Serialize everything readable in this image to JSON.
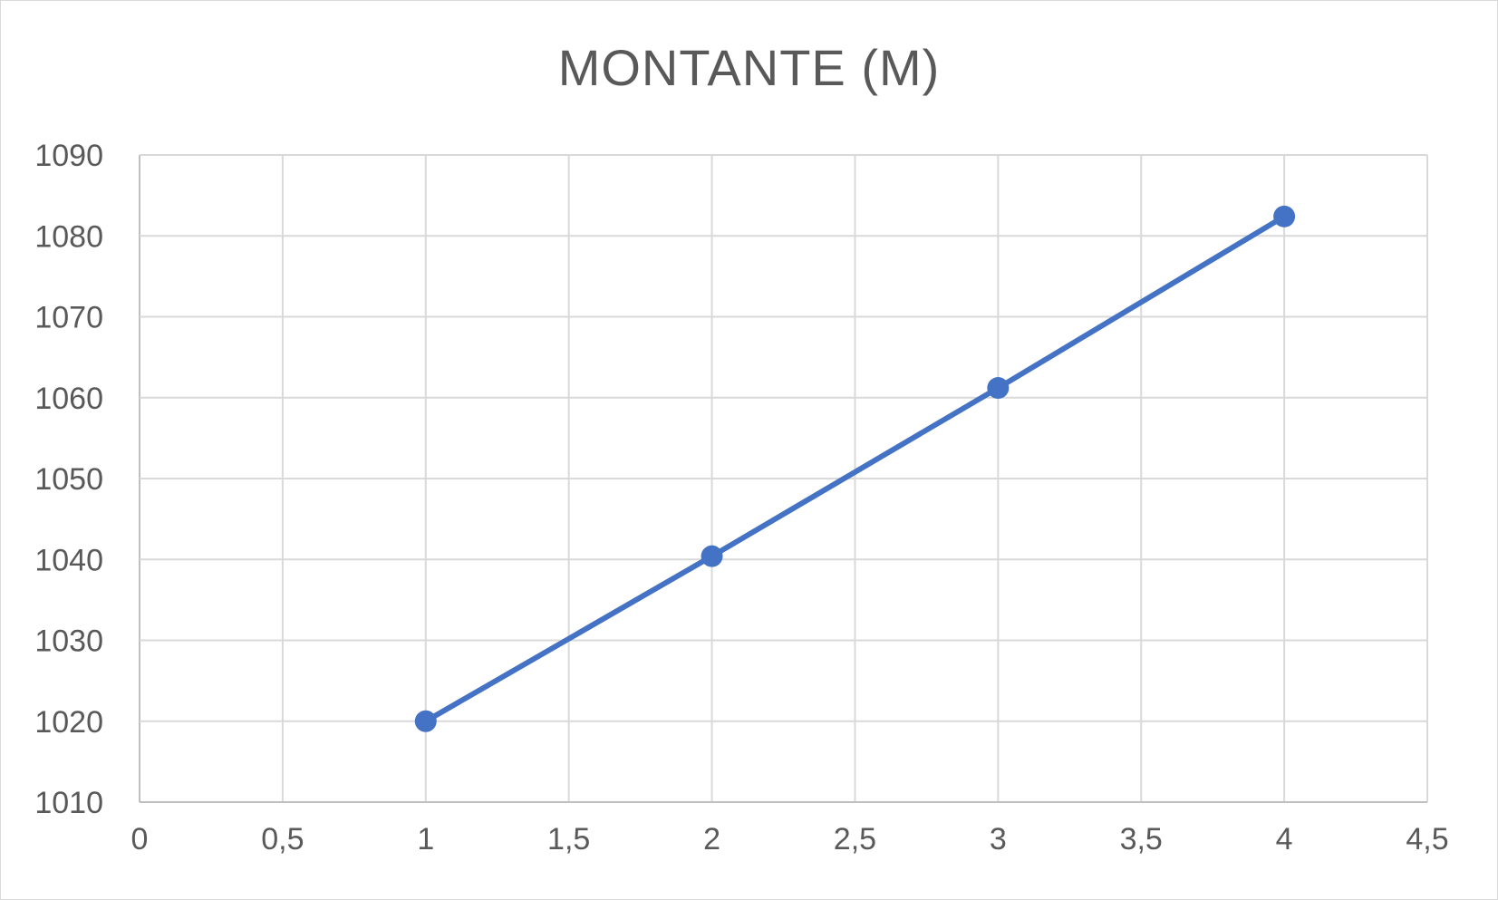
{
  "chart_data": {
    "type": "scatter",
    "title": "MONTANTE (M)",
    "xlabel": "",
    "ylabel": "",
    "xlim": [
      0,
      4.5
    ],
    "ylim": [
      1010,
      1090
    ],
    "x_ticks": [
      "0",
      "0,5",
      "1",
      "1,5",
      "2",
      "2,5",
      "3",
      "3,5",
      "4",
      "4,5"
    ],
    "y_ticks": [
      "1010",
      "1020",
      "1030",
      "1040",
      "1050",
      "1060",
      "1070",
      "1080",
      "1090"
    ],
    "grid": true,
    "legend": "none",
    "series": [
      {
        "color": "#4472C4",
        "marker": "circle",
        "line": "straight",
        "x": [
          1,
          2,
          3,
          4
        ],
        "y": [
          1020,
          1040.4,
          1061.2,
          1082.4
        ]
      }
    ]
  }
}
